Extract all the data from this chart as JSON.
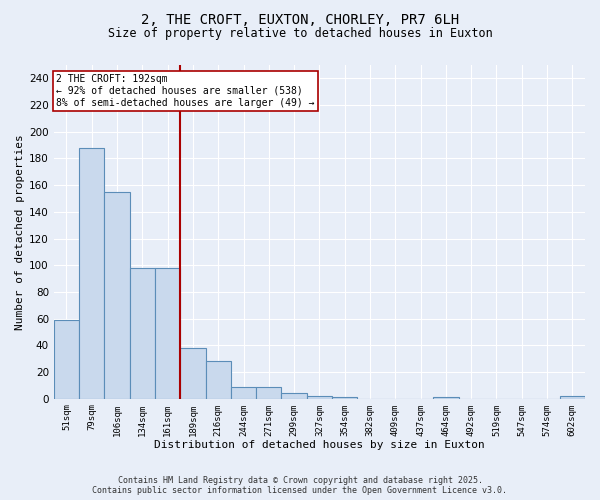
{
  "title1": "2, THE CROFT, EUXTON, CHORLEY, PR7 6LH",
  "title2": "Size of property relative to detached houses in Euxton",
  "xlabel": "Distribution of detached houses by size in Euxton",
  "ylabel": "Number of detached properties",
  "categories": [
    "51sqm",
    "79sqm",
    "106sqm",
    "134sqm",
    "161sqm",
    "189sqm",
    "216sqm",
    "244sqm",
    "271sqm",
    "299sqm",
    "327sqm",
    "354sqm",
    "382sqm",
    "409sqm",
    "437sqm",
    "464sqm",
    "492sqm",
    "519sqm",
    "547sqm",
    "574sqm",
    "602sqm"
  ],
  "values": [
    59,
    188,
    155,
    98,
    98,
    38,
    28,
    9,
    9,
    4,
    2,
    1,
    0,
    0,
    0,
    1,
    0,
    0,
    0,
    0,
    2
  ],
  "bar_color": "#c9d9ed",
  "bar_edge_color": "#5b8db8",
  "vline_index": 5,
  "vline_color": "#aa0000",
  "annotation_text": "2 THE CROFT: 192sqm\n← 92% of detached houses are smaller (538)\n8% of semi-detached houses are larger (49) →",
  "annotation_box_facecolor": "#ffffff",
  "annotation_box_edgecolor": "#aa0000",
  "ylim_max": 250,
  "yticks": [
    0,
    20,
    40,
    60,
    80,
    100,
    120,
    140,
    160,
    180,
    200,
    220,
    240
  ],
  "bg_color": "#e8eef8",
  "grid_color": "#ffffff",
  "title1_fontsize": 10,
  "title2_fontsize": 8.5,
  "footer": "Contains HM Land Registry data © Crown copyright and database right 2025.\nContains public sector information licensed under the Open Government Licence v3.0."
}
